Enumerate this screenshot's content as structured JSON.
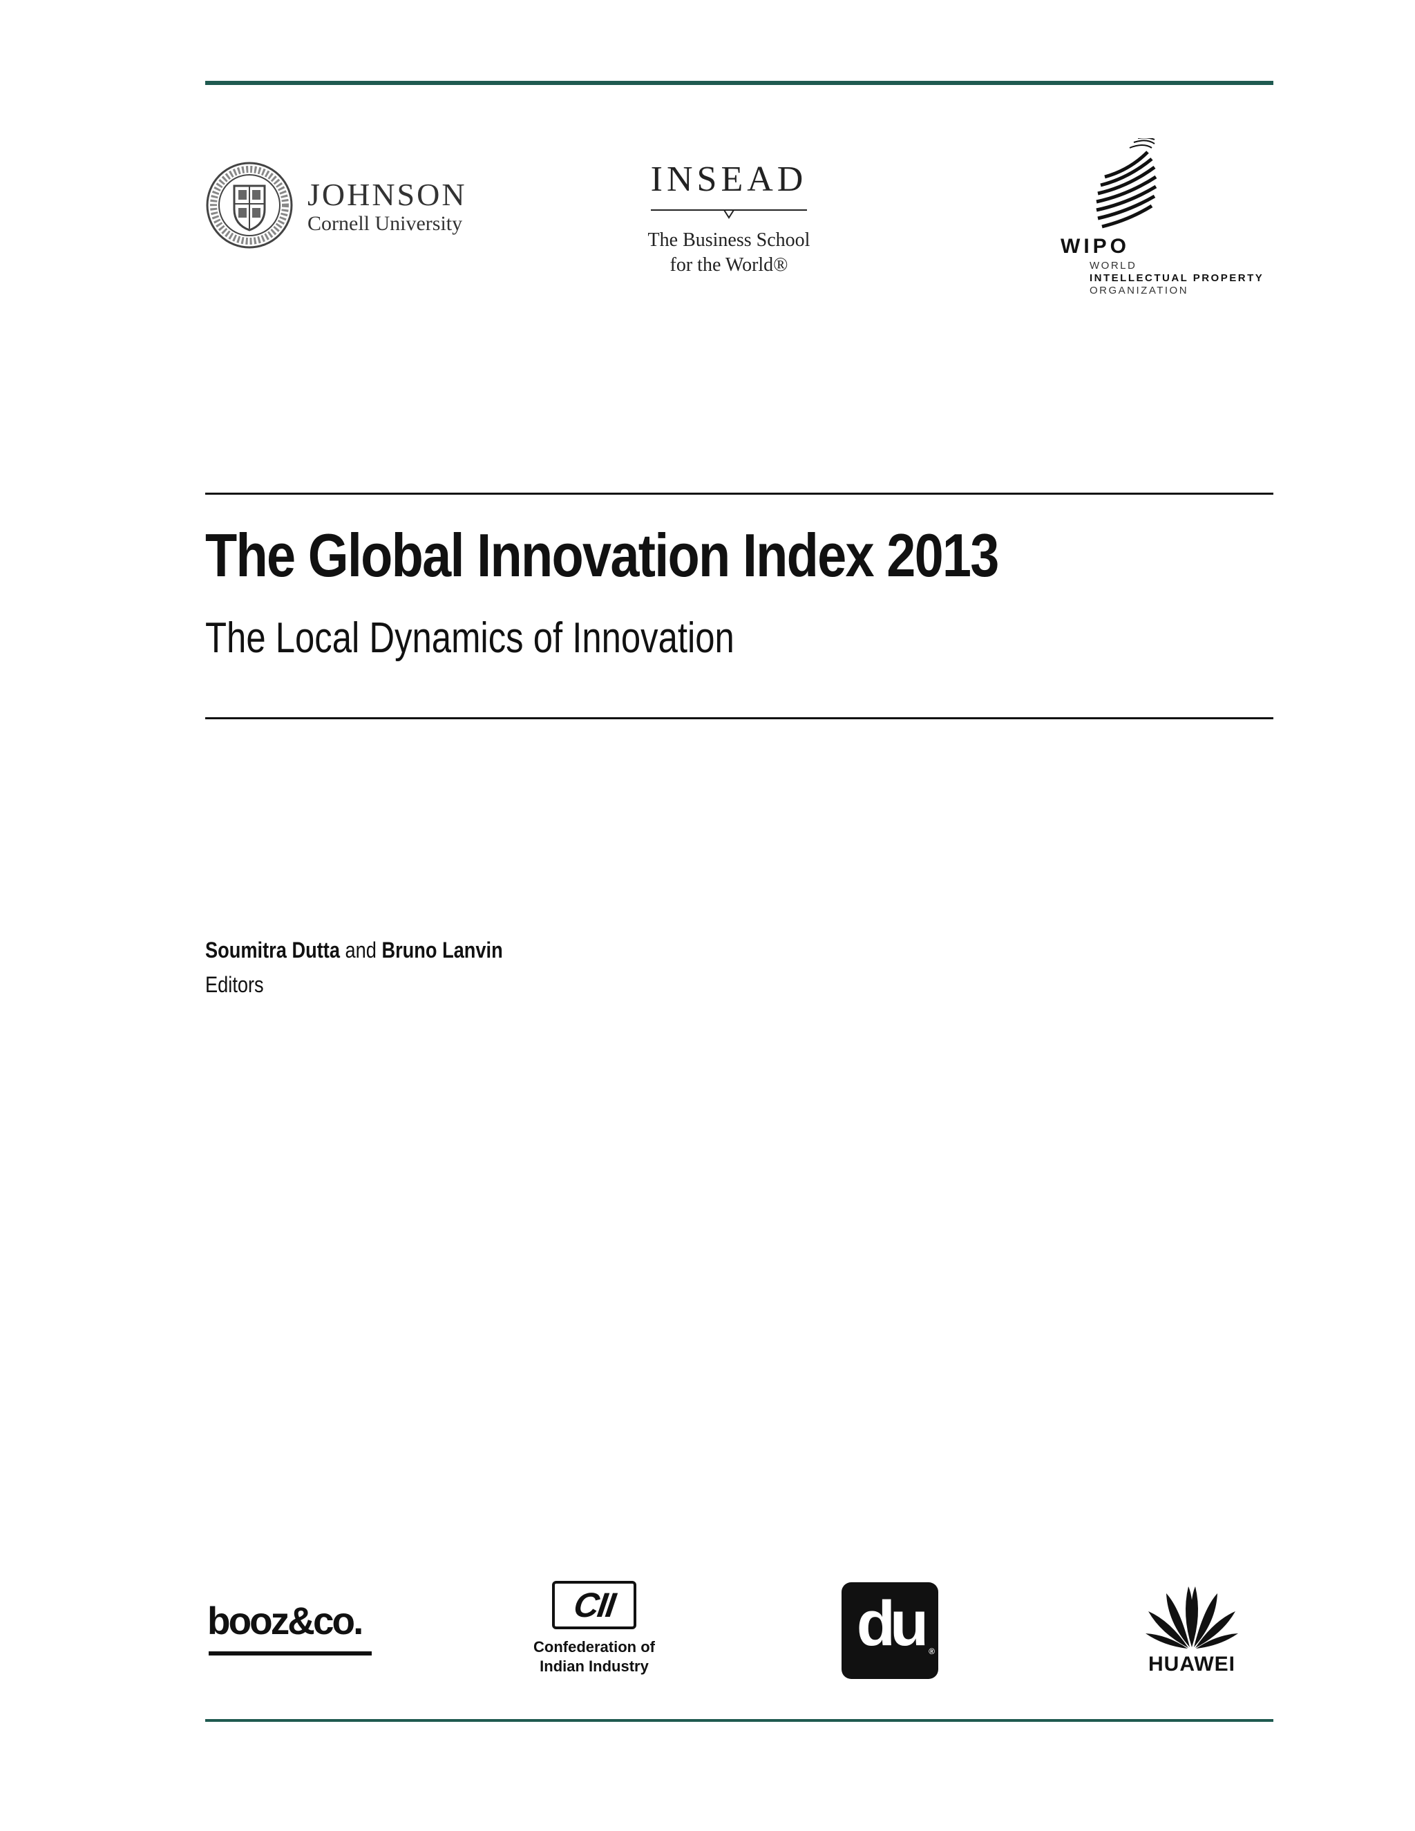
{
  "logos_top": {
    "johnson": {
      "name": "JOHNSON",
      "university": "Cornell University"
    },
    "insead": {
      "name": "INSEAD",
      "tagline_line1": "The Business School",
      "tagline_line2": "for the World®"
    },
    "wipo": {
      "acronym": "WIPO",
      "line1": "WORLD",
      "line2": "INTELLECTUAL PROPERTY",
      "line3": "ORGANIZATION"
    }
  },
  "title": "The Global Innovation Index 2013",
  "subtitle": "The Local Dynamics of Innovation",
  "editors": {
    "name1": "Soumitra Dutta",
    "conjunction": " and ",
    "name2": "Bruno Lanvin",
    "role": "Editors"
  },
  "sponsors": {
    "booz": "booz&co.",
    "cii": {
      "mark": "CII",
      "line1": "Confederation of",
      "line2": "Indian Industry"
    },
    "du": {
      "mark": "du",
      "reg": "®"
    },
    "huawei": "HUAWEI"
  },
  "colors": {
    "accent_rule": "#1f5a50",
    "text": "#111111"
  }
}
